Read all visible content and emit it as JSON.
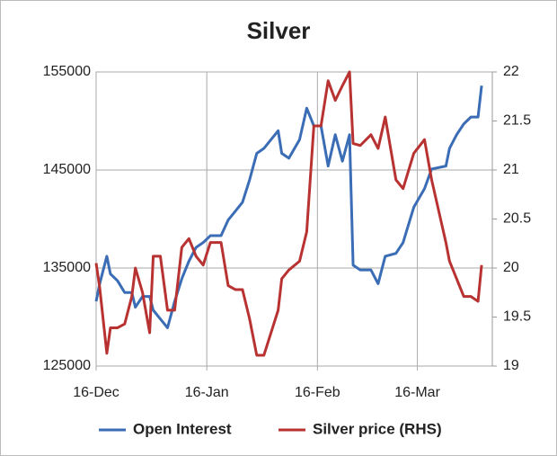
{
  "chart_data": {
    "type": "line",
    "title": "Silver",
    "x": [
      0,
      1,
      3,
      4,
      6,
      8,
      10,
      11,
      13,
      15,
      16,
      18,
      20,
      22,
      24,
      26,
      28,
      30,
      32,
      35,
      37,
      39,
      41,
      43,
      45,
      47,
      49,
      51,
      52,
      54,
      57,
      59,
      61,
      63,
      65,
      67,
      69,
      71,
      72,
      74,
      77,
      79,
      81,
      84,
      86,
      89,
      92,
      94,
      98,
      99,
      101,
      103,
      105,
      107,
      108
    ],
    "xlim": [
      0,
      111
    ],
    "xticks": [
      {
        "value": 0,
        "label": "16-Dec"
      },
      {
        "value": 31,
        "label": "16-Jan"
      },
      {
        "value": 62,
        "label": "16-Feb"
      },
      {
        "value": 90,
        "label": "16-Mar"
      }
    ],
    "ylim": [
      125000,
      155000
    ],
    "yticks": [
      125000,
      135000,
      145000,
      155000
    ],
    "y2lim": [
      19,
      22
    ],
    "y2ticks": [
      19,
      19.5,
      20,
      20.5,
      21,
      21.5,
      22
    ],
    "grid": true,
    "legend": "bottom",
    "series": [
      {
        "name": "Open Interest",
        "color": "#3a6db5",
        "values": [
          131600,
          133400,
          136200,
          134400,
          133700,
          132500,
          132500,
          131000,
          132100,
          132100,
          130700,
          129800,
          128900,
          131600,
          133900,
          135700,
          137100,
          137600,
          138300,
          138300,
          139900,
          140800,
          141700,
          144000,
          146700,
          147200,
          148100,
          149000,
          146700,
          146200,
          148100,
          151300,
          149500,
          149500,
          145400,
          148600,
          145900,
          148600,
          135300,
          134800,
          134800,
          133400,
          136200,
          136500,
          137600,
          141200,
          143100,
          145100,
          145400,
          147200,
          148600,
          149700,
          150400,
          150400,
          153600
        ]
      },
      {
        "name": "Silver price (RHS)",
        "color": "#b83232",
        "axis": "y2",
        "values": [
          20.05,
          19.8,
          19.13,
          19.39,
          19.39,
          19.43,
          19.71,
          20.0,
          19.75,
          19.34,
          20.12,
          20.12,
          19.57,
          19.57,
          20.21,
          20.3,
          20.12,
          20.03,
          20.26,
          20.26,
          19.82,
          19.78,
          19.78,
          19.48,
          19.11,
          19.11,
          19.34,
          19.57,
          19.89,
          19.98,
          20.07,
          20.37,
          21.45,
          21.45,
          21.91,
          21.71,
          21.86,
          22.0,
          21.27,
          21.25,
          21.36,
          21.22,
          21.54,
          20.9,
          20.81,
          21.17,
          21.31,
          20.9,
          20.26,
          20.07,
          19.89,
          19.71,
          19.71,
          19.66,
          20.03
        ]
      }
    ]
  }
}
